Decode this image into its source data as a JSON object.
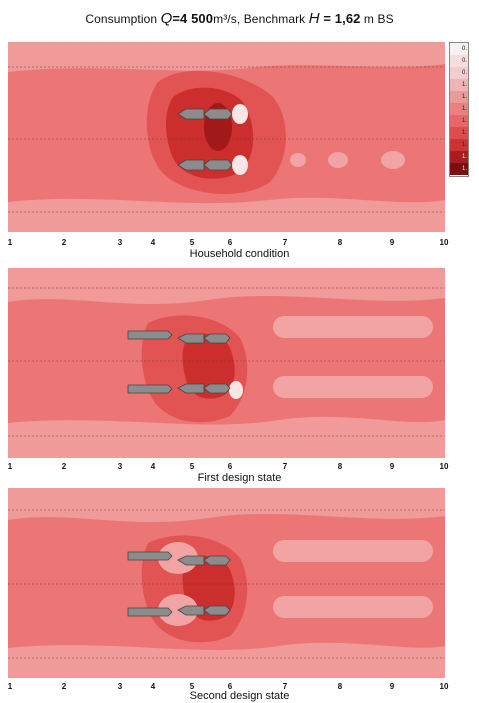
{
  "title": {
    "prefix": "Consumption",
    "q_symbol": "Q",
    "q_value": "=4 500",
    "q_unit": "m³/s",
    "benchmark_label": ", Benchmark",
    "h_symbol": "H",
    "h_value": " = 1,62",
    "h_unit": " m BS"
  },
  "panels": [
    {
      "caption": "Household condition"
    },
    {
      "caption": "First design state"
    },
    {
      "caption": "Second design state"
    }
  ],
  "x_ticks": [
    "1",
    "2",
    "3",
    "4",
    "5",
    "6",
    "7",
    "8",
    "9",
    "10"
  ],
  "legend": {
    "entries": [
      "0.",
      "0.",
      "0.",
      "1.",
      "1.",
      "1.",
      "1.",
      "1.",
      "1.",
      "1.",
      "1."
    ],
    "colors": [
      "#f7f2f2",
      "#f6dede",
      "#f3cdcd",
      "#f0b3b3",
      "#eb9a9a",
      "#e98181",
      "#e56767",
      "#dd4d4d",
      "#cc3333",
      "#a71e1e",
      "#7a1010"
    ]
  },
  "colors": {
    "base": "#ec7676",
    "light": "#f2a3a3",
    "mid": "#e55d5d",
    "dark": "#cc2c2c",
    "darkest": "#8f1212",
    "white_spot": "#fbe5e5",
    "vessel": "#8c8c8c"
  }
}
